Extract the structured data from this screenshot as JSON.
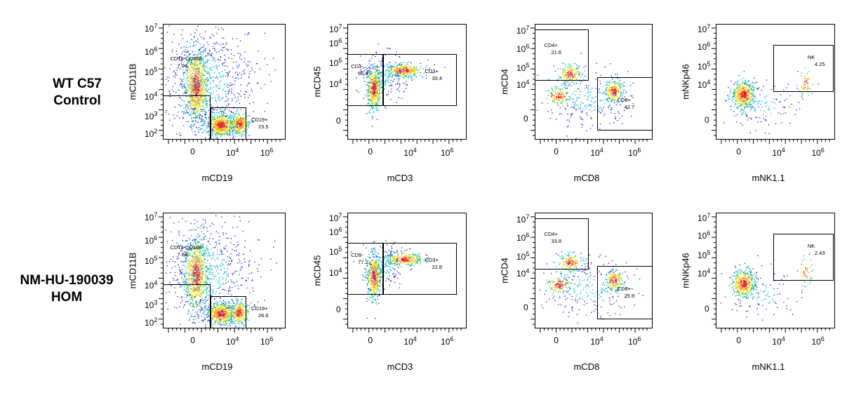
{
  "rows": [
    {
      "label_line1": "WT C57",
      "label_line2": "Control"
    },
    {
      "label_line1": "NM-HU-190039",
      "label_line2": "HOM"
    }
  ],
  "axes": {
    "cd19": {
      "x": "mCD19",
      "y": "mCD11B"
    },
    "cd3": {
      "x": "mCD3",
      "y": "mCD45"
    },
    "cd8": {
      "x": "mCD8",
      "y": "mCD4"
    },
    "nk11": {
      "x": "mNK1.1",
      "y": "mNKp46"
    }
  },
  "tick_labels": {
    "zero": "0",
    "base": "10",
    "e2": "2",
    "e3": "3",
    "e4": "4",
    "e5": "5",
    "e6": "6",
    "e7": "7"
  },
  "chart_data": [
    {
      "type": "scatter",
      "row": "WT C57 Control",
      "xlabel": "mCD19",
      "ylabel": "mCD11B",
      "gates": [
        {
          "name": "CD19-CD11B-",
          "percent": "7.04"
        },
        {
          "name": "CD19+",
          "percent": "23.5"
        }
      ]
    },
    {
      "type": "scatter",
      "row": "WT C57 Control",
      "xlabel": "mCD3",
      "ylabel": "mCD45",
      "gates": [
        {
          "name": "CD3-",
          "percent": "66.6"
        },
        {
          "name": "CD3+",
          "percent": "33.4"
        }
      ]
    },
    {
      "type": "scatter",
      "row": "WT C57 Control",
      "xlabel": "mCD8",
      "ylabel": "mCD4",
      "gates": [
        {
          "name": "CD4+",
          "percent": "21.6"
        },
        {
          "name": "CD8+",
          "percent": "42.7"
        }
      ]
    },
    {
      "type": "scatter",
      "row": "WT C57 Control",
      "xlabel": "mNK1.1",
      "ylabel": "mNKp46",
      "gates": [
        {
          "name": "NK",
          "percent": "4.25"
        }
      ]
    },
    {
      "type": "scatter",
      "row": "NM-HU-190039 HOM",
      "xlabel": "mCD19",
      "ylabel": "mCD11B",
      "gates": [
        {
          "name": "CD19-CD11B-",
          "percent": "7.64"
        },
        {
          "name": "CD19+",
          "percent": "26.6"
        }
      ]
    },
    {
      "type": "scatter",
      "row": "NM-HU-190039 HOM",
      "xlabel": "mCD3",
      "ylabel": "mCD45",
      "gates": [
        {
          "name": "CD3-",
          "percent": "77.2"
        },
        {
          "name": "CD3+",
          "percent": "22.8"
        }
      ]
    },
    {
      "type": "scatter",
      "row": "NM-HU-190039 HOM",
      "xlabel": "mCD8",
      "ylabel": "mCD4",
      "gates": [
        {
          "name": "CD4+",
          "percent": "33.8"
        },
        {
          "name": "CD8+",
          "percent": "25.9"
        }
      ]
    },
    {
      "type": "scatter",
      "row": "NM-HU-190039 HOM",
      "xlabel": "mNK1.1",
      "ylabel": "mNKp46",
      "gates": [
        {
          "name": "NK",
          "percent": "2.43"
        }
      ]
    }
  ]
}
